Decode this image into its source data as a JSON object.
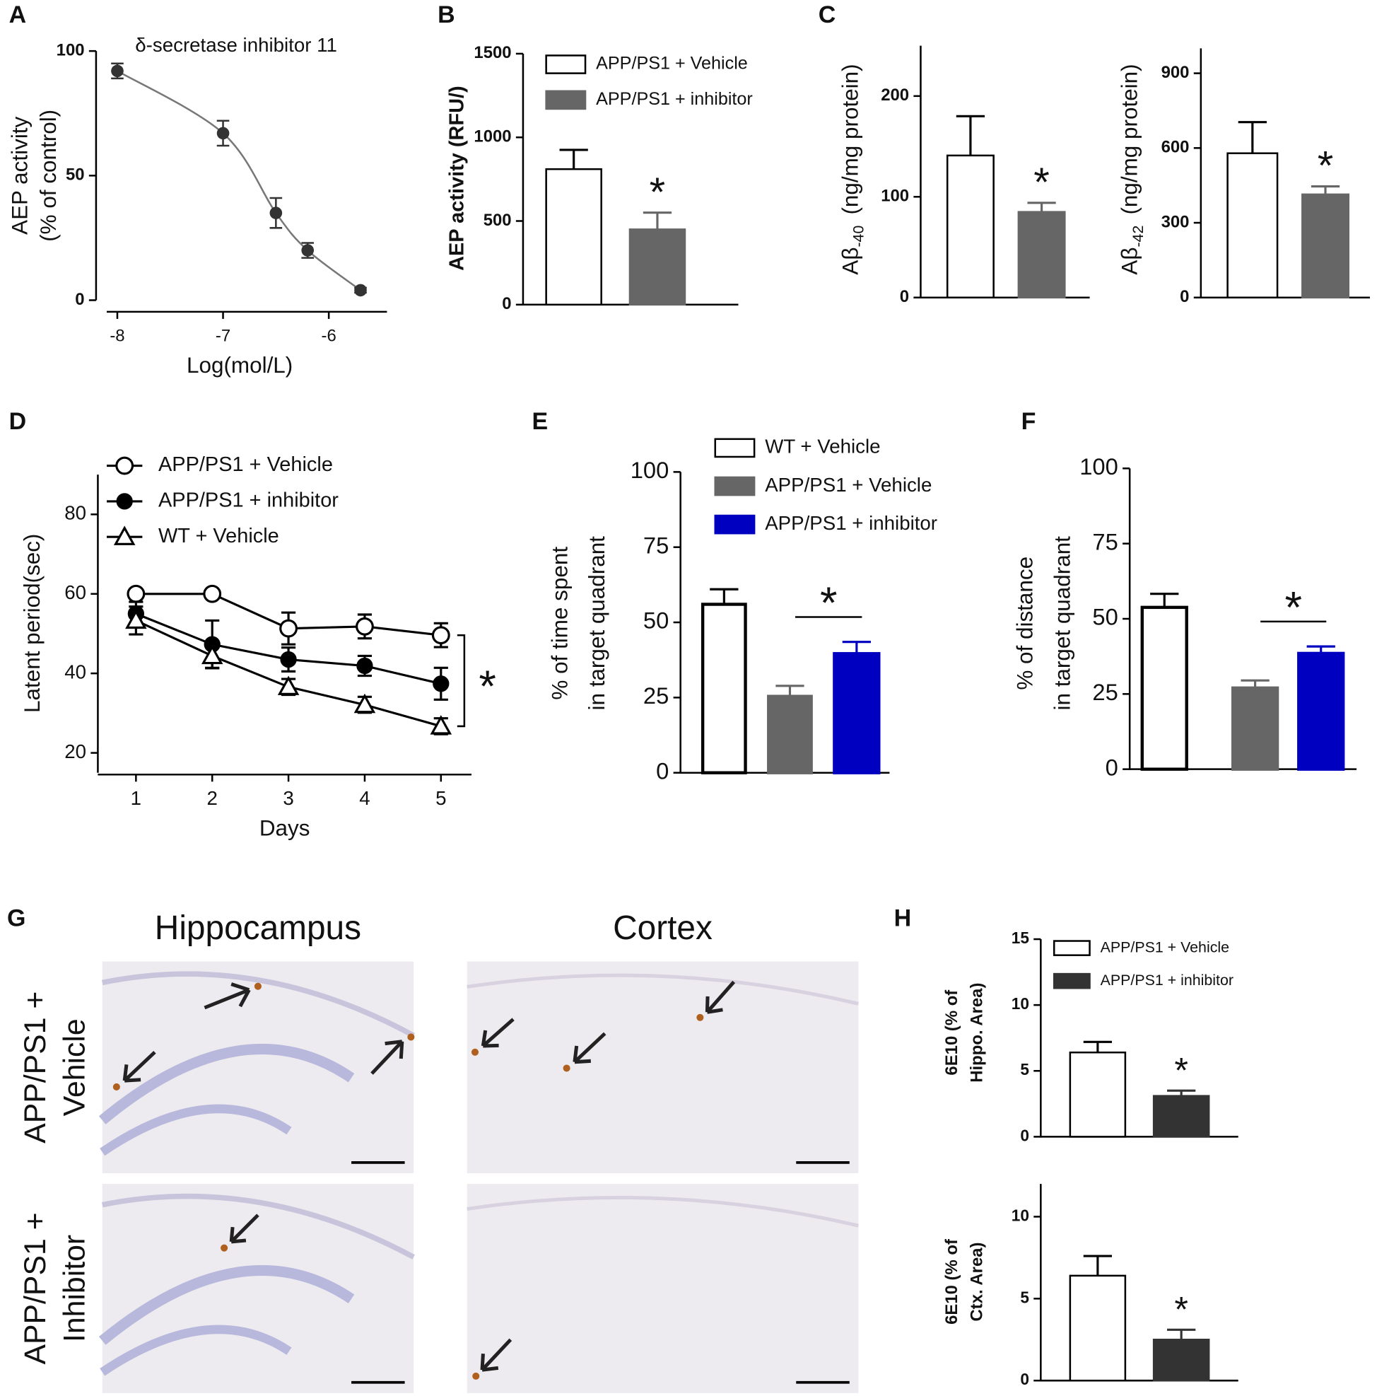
{
  "chart_data": [
    {
      "panel": "A",
      "type": "scatter",
      "title": "δ-secretase inhibitor 11",
      "xlabel": "Log(mol/L)",
      "ylabel": [
        "AEP activity",
        "(% of control)"
      ],
      "x": [
        -8,
        -7,
        -6.5,
        -6.2,
        -5.7
      ],
      "values": [
        92,
        67,
        35,
        20,
        4
      ],
      "errors": [
        3,
        5,
        6,
        3,
        1
      ],
      "color": "#333333",
      "fit_line": true,
      "xlim": [
        -8.1,
        -5.45
      ],
      "xticks": [
        -8,
        -7,
        -6
      ],
      "ylim": [
        0,
        100
      ],
      "yticks": [
        0,
        50,
        100
      ]
    },
    {
      "panel": "B",
      "type": "bar",
      "ylabel": "AEP activity (RFU/)",
      "significance": "*",
      "series": [
        {
          "name": "APP/PS1 + Vehicle",
          "color": "#ffffff",
          "values": [
            810
          ],
          "errors": [
            115
          ]
        },
        {
          "name": "APP/PS1 + inhibitor",
          "color": "#666666",
          "values": [
            450
          ],
          "errors": [
            100
          ]
        }
      ],
      "ylim": [
        0,
        1500
      ],
      "yticks": [
        0,
        500,
        1000,
        1500
      ]
    },
    {
      "panel": "C",
      "type": "bar",
      "ylabel": "Aβ",
      "ylabel_subscript": "-40",
      "ylabel_unit": "(ng/mg protein)",
      "significance": "*",
      "series": [
        {
          "color": "#ffffff",
          "values": [
            141
          ],
          "errors": [
            39
          ]
        },
        {
          "color": "#666666",
          "values": [
            85
          ],
          "errors": [
            9
          ]
        }
      ],
      "ylim": [
        0,
        250
      ],
      "yticks": [
        0,
        100,
        200
      ]
    },
    {
      "type": "bar",
      "ylabel": "Aβ",
      "ylabel_subscript": "-42",
      "ylabel_unit": "(ng/mg  protein)",
      "significance": "*",
      "series": [
        {
          "color": "#ffffff",
          "values": [
            579
          ],
          "errors": [
            125
          ]
        },
        {
          "color": "#666666",
          "values": [
            414
          ],
          "errors": [
            32
          ]
        }
      ],
      "ylim": [
        0,
        1000
      ],
      "yticks": [
        0,
        300,
        600,
        900
      ]
    },
    {
      "panel": "D",
      "type": "line",
      "xlabel": "Days",
      "ylabel": "Latent period(sec)",
      "significance": "*",
      "x": [
        1,
        2,
        3,
        4,
        5
      ],
      "series": [
        {
          "name": "APP/PS1 + Vehicle",
          "marker": "open-circle",
          "color": "#000000",
          "values": [
            60,
            60,
            51.3,
            51.8,
            49.6
          ],
          "errors": [
            0,
            0,
            4,
            3,
            3
          ]
        },
        {
          "name": "APP/PS1 + inhibitor",
          "marker": "filled-circle",
          "color": "#000000",
          "values": [
            55,
            47.3,
            43.5,
            41.9,
            37.4
          ],
          "errors": [
            3,
            6,
            3,
            2.5,
            4
          ]
        },
        {
          "name": "WT + Vehicle",
          "marker": "open-triangle",
          "color": "#000000",
          "values": [
            53.3,
            44.4,
            36.6,
            32.1,
            26.7
          ],
          "errors": [
            3.5,
            3,
            2,
            2,
            2
          ]
        }
      ],
      "xlim": [
        0.5,
        5.4
      ],
      "xticks": [
        1,
        2,
        3,
        4,
        5
      ],
      "ylim": [
        15,
        90
      ],
      "yticks": [
        20,
        40,
        60,
        80
      ]
    },
    {
      "panel": "E",
      "type": "bar",
      "ylabel": [
        "% of time spent",
        "in target quadrant"
      ],
      "significance": "*",
      "series": [
        {
          "name": "WT + Vehicle",
          "color": "#ffffff",
          "values": [
            56
          ],
          "errors": [
            5
          ]
        },
        {
          "name": "APP/PS1 + Vehicle",
          "color": "#666666",
          "values": [
            25.4
          ],
          "errors": [
            3.5
          ]
        },
        {
          "name": "APP/PS1 + inhibitor",
          "color": "#0000c0",
          "values": [
            39.6
          ],
          "errors": [
            3.9
          ]
        }
      ],
      "ylim": [
        0,
        100
      ],
      "yticks": [
        0,
        25,
        50,
        75,
        100
      ]
    },
    {
      "panel": "F",
      "type": "bar",
      "ylabel": [
        "% of distance",
        "in target quadrant"
      ],
      "significance": "*",
      "series": [
        {
          "color": "#ffffff",
          "values": [
            53.8
          ],
          "errors": [
            4.5
          ]
        },
        {
          "color": "#666666",
          "values": [
            27
          ],
          "errors": [
            2.5
          ]
        },
        {
          "color": "#0000c0",
          "values": [
            38.5
          ],
          "errors": [
            2.3
          ]
        }
      ],
      "ylim": [
        0,
        100
      ],
      "yticks": [
        0,
        25,
        50,
        75,
        100
      ]
    },
    {
      "panel": "H",
      "type": "bar",
      "ylabel": [
        "6E10 (% of",
        "Hippo. Area)"
      ],
      "significance": "*",
      "series": [
        {
          "name": "APP/PS1 + Vehicle",
          "color": "#ffffff",
          "values": [
            6.4
          ],
          "errors": [
            0.8
          ]
        },
        {
          "name": "APP/PS1 + inhibitor",
          "color": "#333333",
          "values": [
            3.1
          ],
          "errors": [
            0.4
          ]
        }
      ],
      "ylim": [
        0,
        15
      ],
      "yticks": [
        0,
        5,
        10,
        15
      ]
    },
    {
      "type": "bar",
      "ylabel": [
        "6E10 (% of",
        "Ctx. Area)"
      ],
      "significance": "*",
      "series": [
        {
          "color": "#ffffff",
          "values": [
            6.4
          ],
          "errors": [
            1.2
          ]
        },
        {
          "color": "#333333",
          "values": [
            2.5
          ],
          "errors": [
            0.6
          ]
        }
      ],
      "ylim": [
        0,
        12
      ],
      "yticks": [
        0,
        5,
        10
      ]
    }
  ],
  "images": {
    "panel": "G",
    "columns": [
      "Hippocampus",
      "Cortex"
    ],
    "rows": [
      [
        "APP/PS1 +",
        "Vehicle"
      ],
      [
        "APP/PS1 +",
        "Inhibitor"
      ]
    ]
  }
}
